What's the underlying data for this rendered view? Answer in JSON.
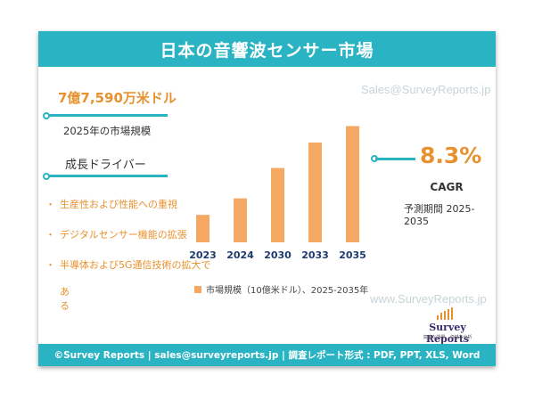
{
  "header": {
    "title": "日本の音響波センサー市場"
  },
  "market_value": "7億7,590万米ドル",
  "market_year_label": "2025年の市場規模",
  "drivers": {
    "title": "成長ドライバー",
    "bullet": "・",
    "items": [
      "生産性および性能への重視",
      "デジタルセンサー機能の拡張",
      "半導体および5G通信技術の拡大で"
    ],
    "continuation": "ある"
  },
  "cagr": {
    "value": "8.3%",
    "label": "CAGR",
    "period": "予測期間 2025-2035"
  },
  "watermarks": {
    "top": "Sales@SurveyReports.jp",
    "bottom": "www.SurveyReports.jp"
  },
  "logo": {
    "name": "Survey Reports",
    "tagline": "高度な視界、卓越な分析"
  },
  "footer": {
    "text": "©Survey Reports | sales@surveyreports.jp |  調査レポート形式 : PDF, PPT, XLS, Word"
  },
  "colors": {
    "teal": "#2ab3c3",
    "orange": "#e8922f",
    "bar": "#f4a862"
  },
  "chart_data": {
    "type": "bar",
    "categories": [
      "2023",
      "2024",
      "2030",
      "2033",
      "2035"
    ],
    "series": [
      {
        "name": "市場規模（10億米ドル）、2025-2035年",
        "values": [
          0.55,
          0.88,
          1.49,
          2.0,
          2.33
        ]
      }
    ],
    "ylim": [
      0,
      2.5
    ],
    "grid": false,
    "legend": "bottom"
  }
}
